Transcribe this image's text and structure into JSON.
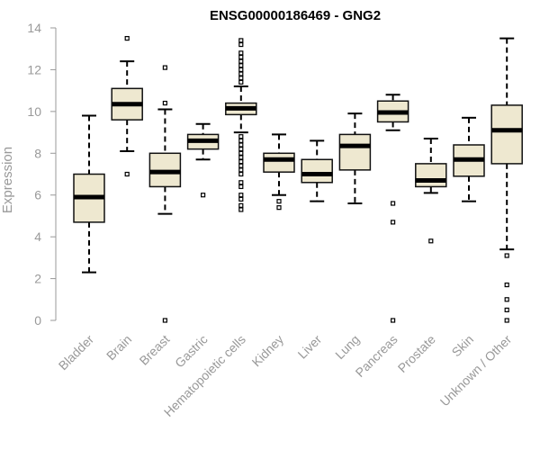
{
  "chart_data": {
    "type": "box",
    "title": "ENSG00000186469 - GNG2",
    "xlabel": "",
    "ylabel": "Expression",
    "ylim": [
      0,
      14
    ],
    "yticks": [
      "0",
      "2",
      "4",
      "6",
      "8",
      "10",
      "12",
      "14"
    ],
    "grid": false,
    "box_color": "#EEE8D0",
    "categories": [
      "Bladder",
      "Brain",
      "Breast",
      "Gastric",
      "Hematopoietic cells",
      "Kidney",
      "Liver",
      "Lung",
      "Pancreas",
      "Prostate",
      "Skin",
      "Unknown / Other"
    ],
    "boxes": [
      {
        "q1": 4.7,
        "median": 5.9,
        "q3": 7.0,
        "whisker_low": 2.3,
        "whisker_high": 9.8,
        "outliers": []
      },
      {
        "q1": 9.6,
        "median": 10.35,
        "q3": 11.1,
        "whisker_low": 8.1,
        "whisker_high": 12.4,
        "outliers": [
          13.5,
          7.0
        ]
      },
      {
        "q1": 6.4,
        "median": 7.1,
        "q3": 8.0,
        "whisker_low": 5.1,
        "whisker_high": 10.1,
        "outliers": [
          12.1,
          10.4,
          0.0
        ]
      },
      {
        "q1": 8.2,
        "median": 8.6,
        "q3": 8.9,
        "whisker_low": 7.7,
        "whisker_high": 9.4,
        "outliers": [
          6.0
        ]
      },
      {
        "q1": 9.85,
        "median": 10.15,
        "q3": 10.4,
        "whisker_low": 9.0,
        "whisker_high": 11.2,
        "outliers": [
          13.4,
          13.2,
          12.8,
          12.6,
          12.4,
          12.2,
          12.0,
          11.8,
          11.6,
          11.4,
          8.8,
          8.6,
          8.4,
          8.2,
          8.0,
          7.8,
          7.6,
          7.4,
          7.2,
          7.0,
          6.6,
          6.4,
          6.0,
          5.8,
          5.5,
          5.3
        ]
      },
      {
        "q1": 7.1,
        "median": 7.7,
        "q3": 8.0,
        "whisker_low": 6.0,
        "whisker_high": 8.9,
        "outliers": [
          5.7,
          5.4
        ]
      },
      {
        "q1": 6.6,
        "median": 7.0,
        "q3": 7.7,
        "whisker_low": 5.7,
        "whisker_high": 8.6,
        "outliers": []
      },
      {
        "q1": 7.2,
        "median": 8.35,
        "q3": 8.9,
        "whisker_low": 5.6,
        "whisker_high": 9.9,
        "outliers": []
      },
      {
        "q1": 9.5,
        "median": 9.95,
        "q3": 10.5,
        "whisker_low": 9.1,
        "whisker_high": 10.8,
        "outliers": [
          5.6,
          4.7,
          0.0
        ]
      },
      {
        "q1": 6.4,
        "median": 6.7,
        "q3": 7.5,
        "whisker_low": 6.1,
        "whisker_high": 8.7,
        "outliers": [
          3.8
        ]
      },
      {
        "q1": 6.9,
        "median": 7.7,
        "q3": 8.4,
        "whisker_low": 5.7,
        "whisker_high": 9.7,
        "outliers": []
      },
      {
        "q1": 7.5,
        "median": 9.1,
        "q3": 10.3,
        "whisker_low": 3.4,
        "whisker_high": 13.5,
        "outliers": [
          3.1,
          1.7,
          1.0,
          0.5,
          0.0
        ]
      }
    ]
  }
}
